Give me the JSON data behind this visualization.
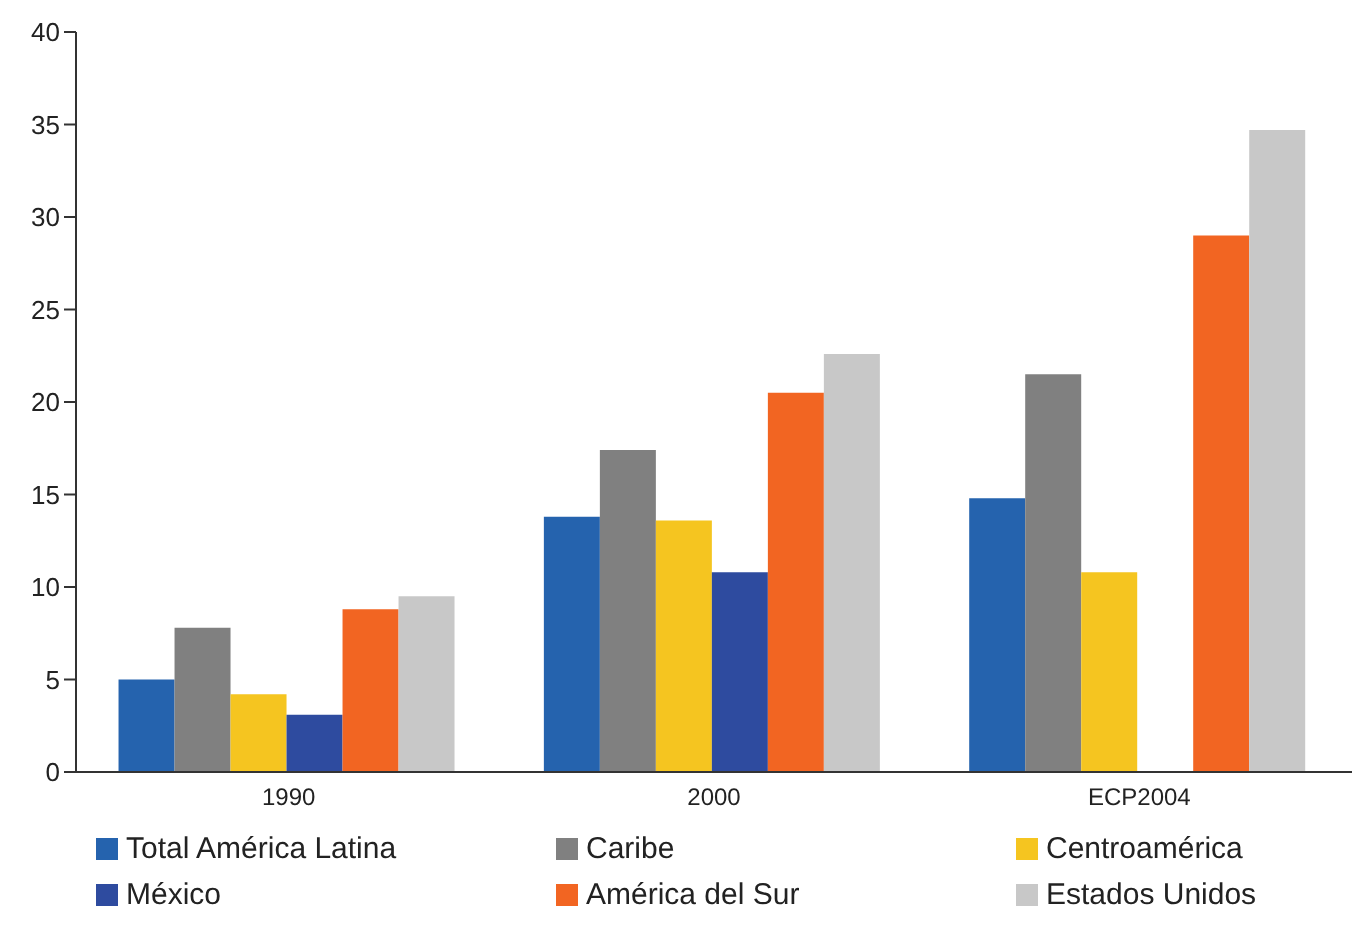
{
  "chart_data": {
    "type": "bar",
    "categories": [
      "1990",
      "2000",
      "ECP2004"
    ],
    "series": [
      {
        "name": "Total América Latina",
        "color": "#2563ae",
        "values": [
          5.0,
          13.8,
          14.8
        ]
      },
      {
        "name": "Caribe",
        "color": "#808080",
        "values": [
          7.8,
          17.4,
          21.5
        ]
      },
      {
        "name": "Centroamérica",
        "color": "#f5c520",
        "values": [
          4.2,
          13.6,
          10.8
        ]
      },
      {
        "name": "México",
        "color": "#2e4b9f",
        "values": [
          3.1,
          10.8,
          null
        ]
      },
      {
        "name": "América del Sur",
        "color": "#f26522",
        "values": [
          8.8,
          20.5,
          29.0
        ]
      },
      {
        "name": "Estados Unidos",
        "color": "#c8c8c8",
        "values": [
          9.5,
          22.6,
          34.7
        ]
      }
    ],
    "ylim": [
      0,
      40
    ],
    "yticks": [
      0,
      5,
      10,
      15,
      20,
      25,
      30,
      35,
      40
    ],
    "grid": false,
    "legend": "bottom"
  }
}
